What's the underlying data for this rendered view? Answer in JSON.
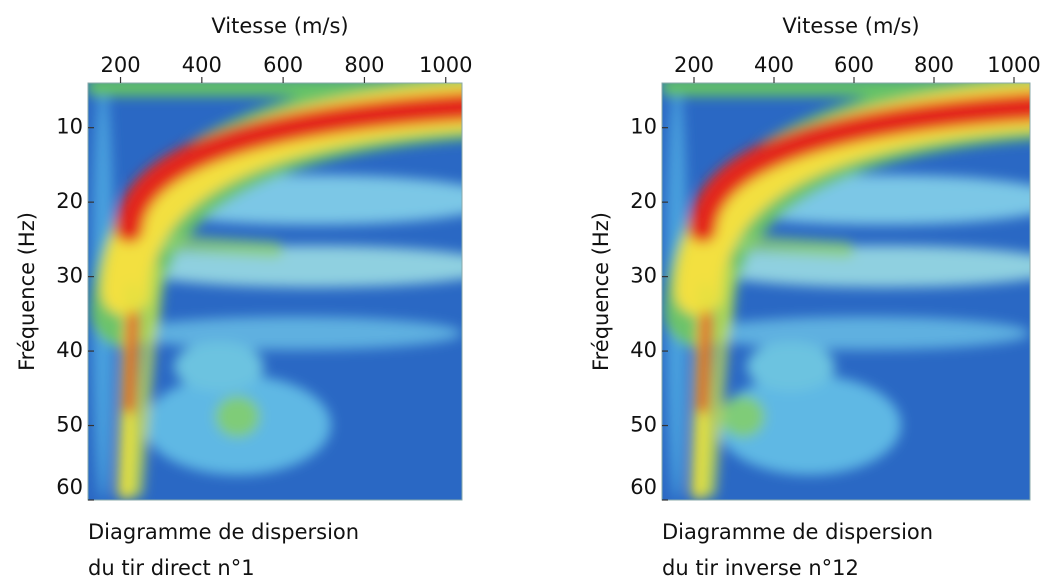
{
  "chart_data": [
    {
      "type": "heatmap",
      "x_label": "Vitesse (m/s)",
      "y_label": "Fréquence (Hz)",
      "xlim": [
        120,
        1040
      ],
      "xticks": [
        200,
        400,
        600,
        800,
        1000
      ],
      "ylim": [
        4,
        60
      ],
      "yticks": [
        10,
        20,
        30,
        40,
        50,
        60
      ],
      "caption": [
        "Diagramme de dispersion",
        "du tir direct n°1"
      ]
    },
    {
      "type": "heatmap",
      "x_label": "Vitesse (m/s)",
      "y_label": "Fréquence (Hz)",
      "xlim": [
        120,
        1040
      ],
      "xticks": [
        200,
        400,
        600,
        800,
        1000
      ],
      "ylim": [
        4,
        60
      ],
      "yticks": [
        10,
        20,
        30,
        40,
        50,
        60
      ],
      "caption": [
        "Diagramme de dispersion",
        "du tir inverse n°12"
      ]
    }
  ]
}
